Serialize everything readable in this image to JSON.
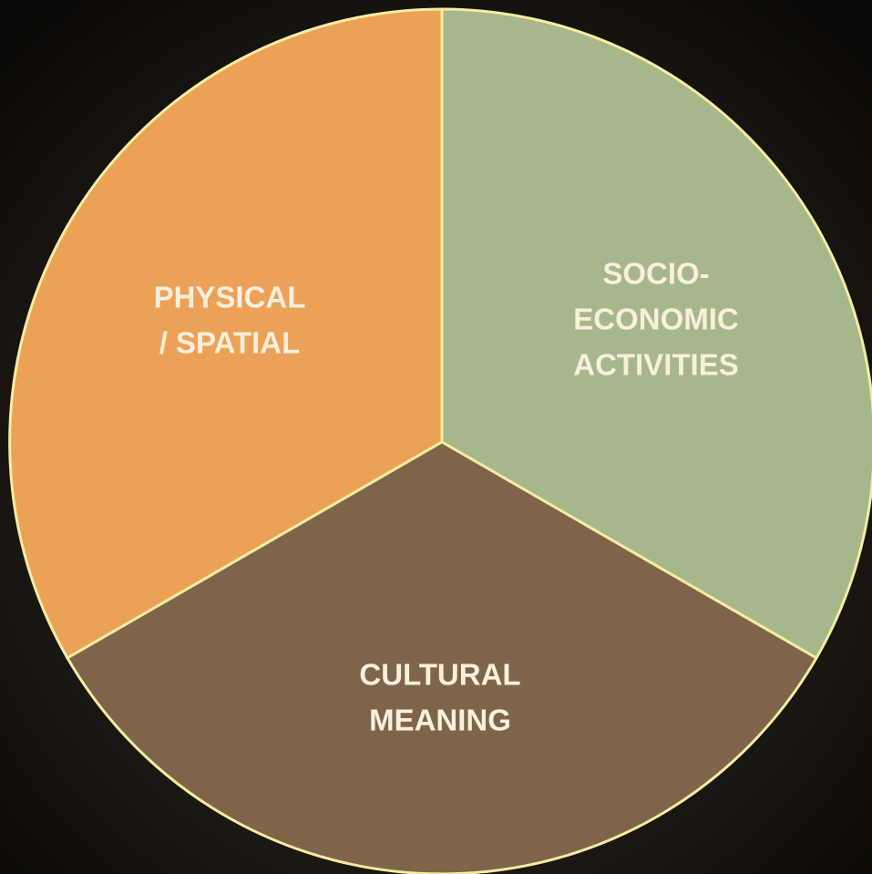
{
  "segments": [
    {
      "label_lines": [
        "PHYSICAL",
        "/ SPATIAL"
      ]
    },
    {
      "label_lines": [
        "SOCIO-",
        "ECONOMIC",
        "ACTIVITIES"
      ]
    },
    {
      "label_lines": [
        "CULTURAL",
        "MEANING"
      ]
    }
  ]
}
